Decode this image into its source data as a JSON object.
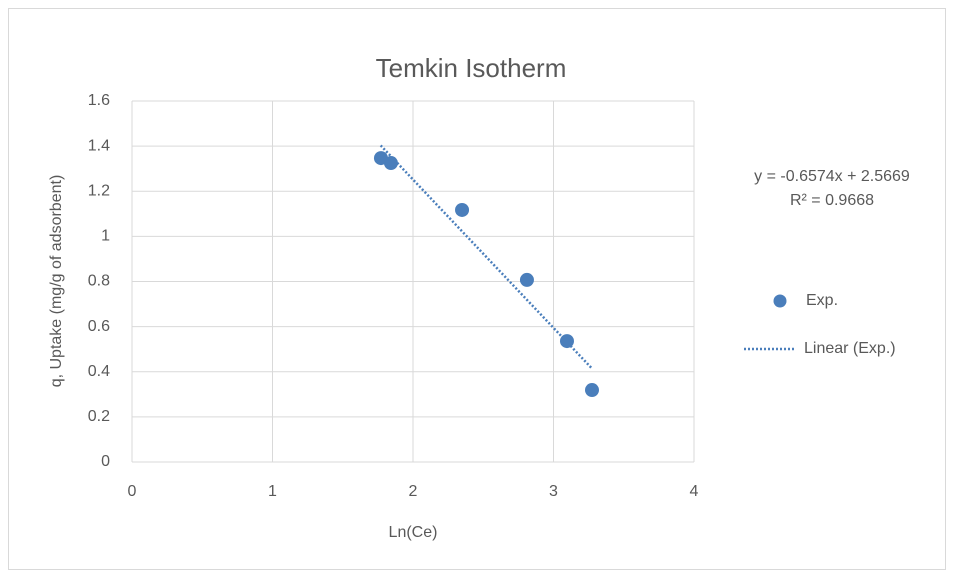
{
  "chart_data": {
    "type": "scatter",
    "title": "Temkin Isotherm",
    "x_label": "Ln(Ce)",
    "y_label": "q, Uptake (mg/g of adsorbent)",
    "series": [
      {
        "name": "Exp.",
        "color": "#4a7ebb",
        "x": [
          1.772,
          1.843,
          2.349,
          2.811,
          3.096,
          3.274
        ],
        "values": [
          1.347,
          1.325,
          1.117,
          0.807,
          0.536,
          0.319
        ]
      }
    ],
    "trendline": {
      "name": "Linear (Exp.)",
      "color": "#4a7ebb",
      "style": "dotted",
      "x": [
        1.77,
        3.27
      ],
      "values": [
        1.403,
        0.417
      ],
      "equation": "y = -0.6574x + 2.5669",
      "r_squared": "R² = 0.9668"
    },
    "xlim": [
      0,
      4
    ],
    "xticks": [
      0,
      1,
      2,
      3,
      4
    ],
    "ylim": [
      0,
      1.6
    ],
    "yticks": [
      0,
      0.2,
      0.4,
      0.6,
      0.8,
      1,
      1.2,
      1.4,
      1.6
    ],
    "grid": true,
    "legend": "right"
  }
}
